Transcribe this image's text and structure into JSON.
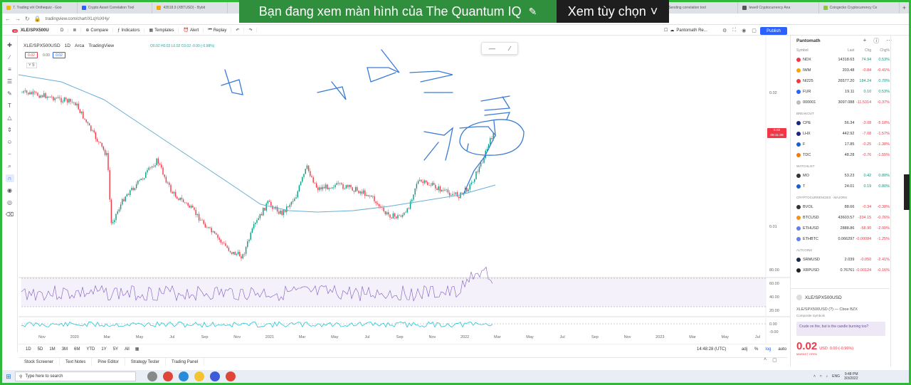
{
  "browser": {
    "tabs": [
      {
        "label": "7. Trading với Onthequiz - Goo",
        "color": "#f2b705"
      },
      {
        "label": "Crypto Asset Correlation Tool",
        "color": "#2962ff"
      },
      {
        "label": "43518.9 (XBTUSD) - Bybit",
        "color": "#f7a600"
      },
      {
        "label": "Sending correlation tool",
        "color": "#1a73e8"
      },
      {
        "label": "lewell Cryptocurrency Ana",
        "color": "#555"
      },
      {
        "label": "Coingecko Cryptocurrency Ce",
        "color": "#8dc63f"
      }
    ],
    "new_tab": "+",
    "url": "tradingview.com/chart/XLqYoXHy/"
  },
  "share": {
    "message": "Bạn đang xem màn hình của The Quantum IQ",
    "options_label": "Xem tùy chọn"
  },
  "toolbar": {
    "symbol": "XLE/SPX500U",
    "interval": "D",
    "compare": "Compare",
    "indicators": "Indicators",
    "templates": "Templates",
    "alert": "Alert",
    "replay": "Replay",
    "layout_name": "Pantomath Re...",
    "publish": "Publish",
    "notification_count": "10"
  },
  "legend": {
    "symbol": "XLE/SPX500USD",
    "interval": "1D",
    "exchange": "Arca",
    "source": "TradingView",
    "ohlc": "O0.02 H0.02 L0.02 C0.02 -0.00 (-0.98%)",
    "bid": "0.02",
    "spread": "0.00",
    "ask": "0.02",
    "collapsed_count": "5"
  },
  "chart": {
    "price_tag_value": "0.02",
    "price_tag_time": "05:11:38",
    "y_ticks": [
      "0.02",
      "0.01"
    ],
    "rsi_ticks": [
      "80.00",
      "60.00",
      "40.00",
      "20.00"
    ],
    "osc_ticks": [
      "0.00",
      "-0.00"
    ],
    "x_ticks": [
      "Nov",
      "2020",
      "Mar",
      "May",
      "Jul",
      "Sep",
      "Nov",
      "2021",
      "Mar",
      "May",
      "Jul",
      "Sep",
      "Nov",
      "2022",
      "Mar",
      "May",
      "Jul",
      "Sep",
      "Nov",
      "2023",
      "Mar",
      "May",
      "Jul"
    ],
    "colors": {
      "candle_up": "#089981",
      "candle_down": "#f23645",
      "ma": "#6aaed6",
      "rsi": "#7e57c2",
      "osc": "#26c6da",
      "drawing": "#3a7bd5"
    }
  },
  "timebar": {
    "ranges": [
      "1D",
      "5D",
      "1M",
      "3M",
      "6M",
      "YTD",
      "1Y",
      "5Y",
      "All"
    ],
    "clock": "14:48:28 (UTC)",
    "adj": "adj",
    "percent": "%",
    "log": "log",
    "auto": "auto"
  },
  "bottom_panels": [
    "Stock Screener",
    "Text Notes",
    "Pine Editor",
    "Strategy Tester",
    "Trading Panel"
  ],
  "watchlist": {
    "name": "Pantomath",
    "columns": [
      "Symbol",
      "Last",
      "Chg",
      "Chg%"
    ],
    "groups": [
      {
        "title": "",
        "rows": [
          {
            "symbol": "NDX",
            "last": "14318.63",
            "chg": "74.94",
            "pct": "0.53%",
            "dir": "pos",
            "color": "#f23645"
          },
          {
            "symbol": "IWM",
            "last": "203.48",
            "chg": "-0.84",
            "pct": "-0.41%",
            "dir": "neg",
            "color": "#f7a600"
          },
          {
            "symbol": "NI225",
            "last": "26577.20",
            "chg": "184.24",
            "pct": "0.70%",
            "dir": "pos",
            "color": "#f23645"
          },
          {
            "symbol": "FUR",
            "last": "19.11",
            "chg": "0.10",
            "pct": "0.53%",
            "dir": "pos",
            "color": "#2962ff"
          },
          {
            "symbol": "000001",
            "last": "3097.088",
            "chg": "-11.5314",
            "pct": "-0.37%",
            "dir": "neg",
            "color": "#bbb"
          }
        ]
      },
      {
        "title": "BREAKOUT",
        "rows": [
          {
            "symbol": "CPE",
            "last": "56.34",
            "chg": "-3.08",
            "pct": "-5.18%",
            "dir": "neg",
            "color": "#1a237e"
          },
          {
            "symbol": "LHX",
            "last": "442.92",
            "chg": "-7.08",
            "pct": "-1.57%",
            "dir": "neg",
            "color": "#1a237e"
          },
          {
            "symbol": "F",
            "last": "17.85",
            "chg": "-0.25",
            "pct": "-1.38%",
            "dir": "neg",
            "color": "#1a5fd0"
          },
          {
            "symbol": "TDC",
            "last": "48.28",
            "chg": "-0.76",
            "pct": "-1.55%",
            "dir": "neg",
            "color": "#f57c00"
          }
        ]
      },
      {
        "title": "WATCHLIST",
        "rows": [
          {
            "symbol": "MO",
            "last": "53.23",
            "chg": "0.42",
            "pct": "0.80%",
            "dir": "pos",
            "color": "#333"
          },
          {
            "symbol": "T",
            "last": "24.01",
            "chg": "0.19",
            "pct": "0.80%",
            "dir": "pos",
            "color": "#1a5fd0"
          }
        ]
      },
      {
        "title": "CRYPTOCURRENCIES · MAJORS",
        "rows": [
          {
            "symbol": "BVOL",
            "last": "88.66",
            "chg": "-0.34",
            "pct": "-0.38%",
            "dir": "neg",
            "color": "#333"
          },
          {
            "symbol": "BTCUSD",
            "last": "43603.57",
            "chg": "-334.15",
            "pct": "-0.76%",
            "dir": "neg",
            "color": "#f7931a"
          },
          {
            "symbol": "ETHUSD",
            "last": "2888.86",
            "chg": "-58.90",
            "pct": "-2.00%",
            "dir": "neg",
            "color": "#627eea"
          },
          {
            "symbol": "ETHBTC",
            "last": "0.066297",
            "chg": "-0.00084",
            "pct": "-1.25%",
            "dir": "neg",
            "color": "#627eea"
          }
        ]
      },
      {
        "title": "ALTCOINS",
        "rows": [
          {
            "symbol": "SRMUSD",
            "last": "2.039",
            "chg": "-0.050",
            "pct": "-2.41%",
            "dir": "neg",
            "color": "#1b2b4b"
          },
          {
            "symbol": "XRPUSD",
            "last": "0.76761",
            "chg": "-0.00124",
            "pct": "-0.16%",
            "dir": "neg",
            "color": "#222"
          }
        ]
      }
    ]
  },
  "detail": {
    "symbol": "XLE/SPX500USD",
    "description": "XLE/SPX500USD (?) — Cboe BZX",
    "type": "Composite Symbols",
    "note": "Crude on fire, but is the candle burning too?",
    "price": "0.02",
    "currency": "USD",
    "change": "0.00 (-0.96%)",
    "market_status": "MARKET OPEN"
  },
  "taskbar": {
    "search_placeholder": "Type here to search",
    "lang": "ENG",
    "time": "9:48 PM",
    "date": "3/3/2022"
  }
}
